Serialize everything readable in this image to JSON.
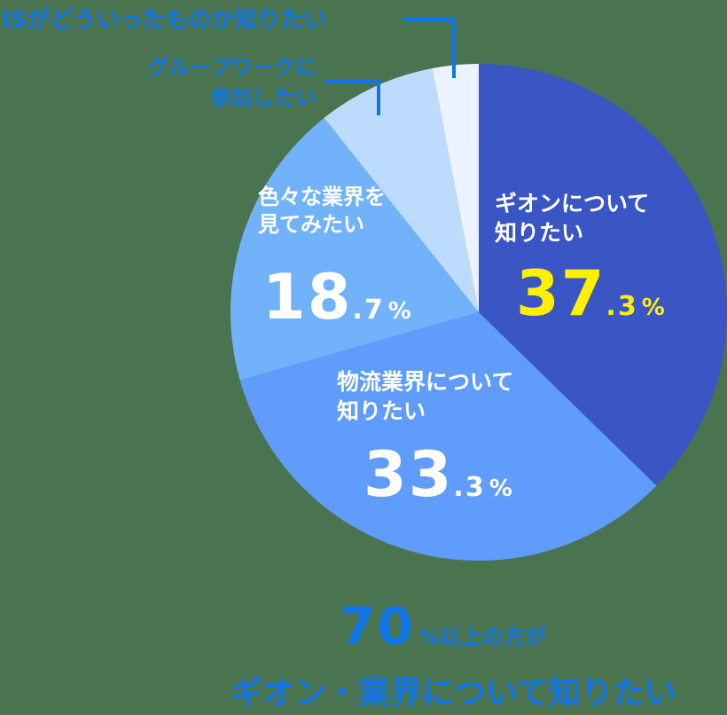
{
  "chart_data": {
    "type": "pie",
    "title": "",
    "start_angle_deg": 0,
    "direction": "clockwise",
    "slices": [
      {
        "label": "ギオンについて知りたい",
        "value": 37.3,
        "color": "#3a55c4"
      },
      {
        "label": "物流業界について知りたい",
        "value": 33.3,
        "color": "#5f9cfc"
      },
      {
        "label": "色々な業界を見てみたい",
        "value": 18.7,
        "color": "#72b2fb"
      },
      {
        "label": "グループワークに参加したい",
        "value": 7.7,
        "color": "#bddcfd"
      },
      {
        "label": "ISがどういったものか知りたい",
        "value": 3.0,
        "color": "#eaf3ff"
      }
    ]
  },
  "labels": {
    "gion": {
      "line1": "ギオンについて",
      "line2": "知りたい",
      "int": "37",
      "dec": ".3",
      "sign": "%"
    },
    "logistics": {
      "line1": "物流業界について",
      "line2": "知りたい",
      "int": "33",
      "dec": ".3",
      "sign": "%"
    },
    "various": {
      "line1": "色々な業界を",
      "line2": "見てみたい",
      "int": "18",
      "dec": ".7",
      "sign": "%"
    },
    "group": {
      "line1": "グループワークに",
      "line2": "参加したい"
    },
    "is": {
      "line1": "ISがどういったものか知りたい"
    }
  },
  "summary": {
    "pct": "70",
    "pct_sign": "%",
    "line1_rest": "以上の方が",
    "line2": "ギオン・業界について知りたい"
  },
  "colors": {
    "accent_blue": "#0f75e8",
    "highlight_yellow": "#fff000"
  }
}
